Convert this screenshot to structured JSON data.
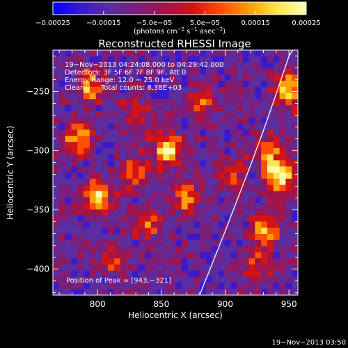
{
  "colorbar": {
    "tick_labels": [
      "−0.00025",
      "−0.00015",
      "−5.0e−05",
      "5.0e−05",
      "0.00015",
      "0.00025"
    ],
    "tick_values": [
      -0.00025,
      -0.00015,
      -5e-05,
      5e-05,
      0.00015,
      0.00025
    ],
    "range": [
      -0.00025,
      0.00025
    ],
    "unit_label_html": "(photons cm<tspan baseline-shift=\"super\" font-size=\"7\">−2</tspan> s<tspan baseline-shift=\"super\" font-size=\"7\">−1</tspan> asec<tspan baseline-shift=\"super\" font-size=\"7\">−2</tspan>)"
  },
  "colors": {
    "background": "#000000",
    "foreground": "#ffffff",
    "colormap": [
      "#0000ff",
      "#3a1acd",
      "#5a2da0",
      "#7a1f7a",
      "#a0144a",
      "#d21414",
      "#ff5000",
      "#ffa000",
      "#ffe650",
      "#ffffb4"
    ]
  },
  "chart_data": {
    "type": "heatmap",
    "title": "Reconstructed RHESSI Image",
    "xlabel": "Heliocentric X (arcsec)",
    "ylabel": "Heliocentric Y (arcsec)",
    "xlim": [
      765,
      957
    ],
    "ylim": [
      -422,
      -215
    ],
    "x_ticks": [
      800,
      850,
      900,
      950
    ],
    "y_ticks": [
      -250,
      -300,
      -350,
      -400
    ],
    "x_tick_labels": [
      "800",
      "850",
      "900",
      "950"
    ],
    "y_tick_labels": [
      "−250",
      "−300",
      "−350",
      "−400"
    ],
    "annotations": [
      "19−Nov−2013 04:24:08.000 to 04:29:42.000",
      "Detectors: 3F 5F 6F 7F 8F 9F, Att 0",
      "Energy Range: 12.0 − 25.0 keV",
      "Clean",
      "Total counts: 8.38E+03"
    ],
    "peak_label": "Position of Peak = [943,−321]",
    "peak": [
      943,
      -321
    ],
    "limb_curve": [
      [
        880,
        -422
      ],
      [
        890,
        -395
      ],
      [
        900,
        -368
      ],
      [
        910,
        -340
      ],
      [
        920,
        -312
      ],
      [
        930,
        -283
      ],
      [
        940,
        -252
      ],
      [
        950,
        -220
      ],
      [
        953,
        -215
      ]
    ],
    "bright_sources": [
      {
        "x": 800,
        "y": -340,
        "intensity": 0.9
      },
      {
        "x": 785,
        "y": -290,
        "intensity": 0.75
      },
      {
        "x": 795,
        "y": -245,
        "intensity": 0.6
      },
      {
        "x": 830,
        "y": -270,
        "intensity": 0.4
      },
      {
        "x": 855,
        "y": -300,
        "intensity": 0.85
      },
      {
        "x": 870,
        "y": -340,
        "intensity": 0.65
      },
      {
        "x": 838,
        "y": -362,
        "intensity": 0.6
      },
      {
        "x": 882,
        "y": -258,
        "intensity": 0.5
      },
      {
        "x": 905,
        "y": -320,
        "intensity": 0.45
      },
      {
        "x": 830,
        "y": -320,
        "intensity": 0.5
      },
      {
        "x": 812,
        "y": -392,
        "intensity": 0.45
      },
      {
        "x": 935,
        "y": -300,
        "intensity": 0.55
      },
      {
        "x": 943,
        "y": -321,
        "intensity": 1.0
      },
      {
        "x": 950,
        "y": -250,
        "intensity": 0.8
      },
      {
        "x": 930,
        "y": -365,
        "intensity": 0.65
      },
      {
        "x": 925,
        "y": -395,
        "intensity": 0.45
      }
    ]
  },
  "footer": {
    "timestamp": "19−Nov−2013 03:50"
  }
}
